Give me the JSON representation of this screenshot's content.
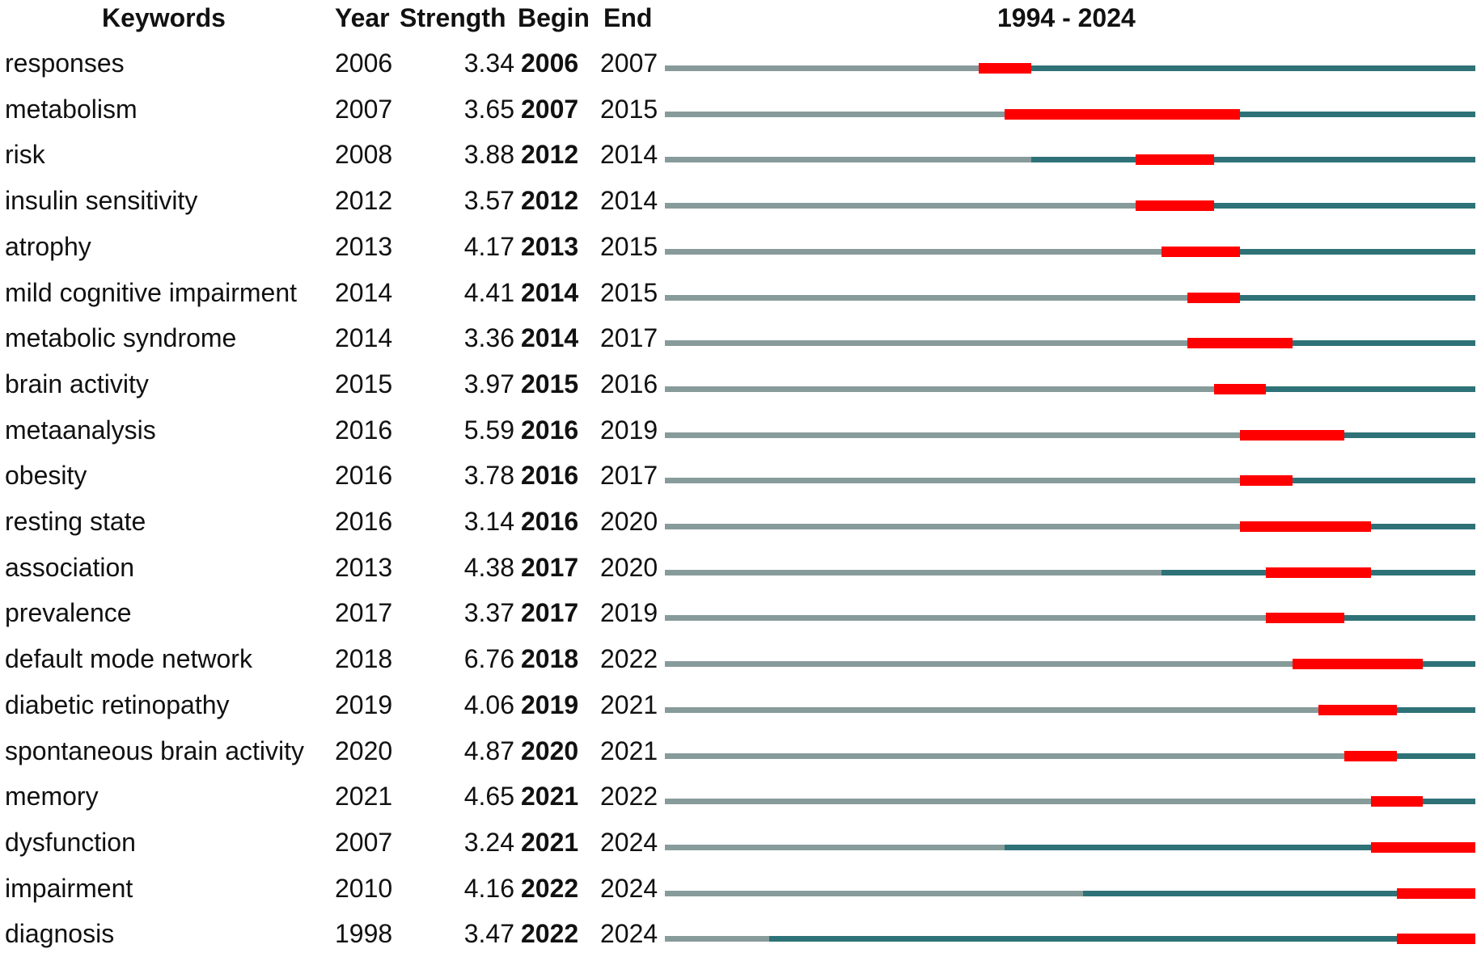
{
  "chart_data": {
    "type": "table",
    "period_label": "1994 - 2024",
    "period_start": 1994,
    "period_end": 2024,
    "colors": {
      "before_appearance": "#879b9a",
      "active": "#2e7277",
      "burst": "#ff0000"
    },
    "headers": {
      "keyword": "Keywords",
      "year": "Year",
      "strength": "Strength",
      "begin": "Begin",
      "end": "End"
    },
    "rows": [
      {
        "keyword": "responses",
        "year": "2006",
        "strength": "3.34",
        "begin": "2006",
        "end": "2007"
      },
      {
        "keyword": "metabolism",
        "year": "2007",
        "strength": "3.65",
        "begin": "2007",
        "end": "2015"
      },
      {
        "keyword": "risk",
        "year": "2008",
        "strength": "3.88",
        "begin": "2012",
        "end": "2014"
      },
      {
        "keyword": "insulin sensitivity",
        "year": "2012",
        "strength": "3.57",
        "begin": "2012",
        "end": "2014"
      },
      {
        "keyword": "atrophy",
        "year": "2013",
        "strength": "4.17",
        "begin": "2013",
        "end": "2015"
      },
      {
        "keyword": "mild cognitive impairment",
        "year": "2014",
        "strength": "4.41",
        "begin": "2014",
        "end": "2015"
      },
      {
        "keyword": "metabolic syndrome",
        "year": "2014",
        "strength": "3.36",
        "begin": "2014",
        "end": "2017"
      },
      {
        "keyword": "brain activity",
        "year": "2015",
        "strength": "3.97",
        "begin": "2015",
        "end": "2016"
      },
      {
        "keyword": "metaanalysis",
        "year": "2016",
        "strength": "5.59",
        "begin": "2016",
        "end": "2019"
      },
      {
        "keyword": "obesity",
        "year": "2016",
        "strength": "3.78",
        "begin": "2016",
        "end": "2017"
      },
      {
        "keyword": "resting state",
        "year": "2016",
        "strength": "3.14",
        "begin": "2016",
        "end": "2020"
      },
      {
        "keyword": "association",
        "year": "2013",
        "strength": "4.38",
        "begin": "2017",
        "end": "2020"
      },
      {
        "keyword": "prevalence",
        "year": "2017",
        "strength": "3.37",
        "begin": "2017",
        "end": "2019"
      },
      {
        "keyword": "default mode network",
        "year": "2018",
        "strength": "6.76",
        "begin": "2018",
        "end": "2022"
      },
      {
        "keyword": "diabetic retinopathy",
        "year": "2019",
        "strength": "4.06",
        "begin": "2019",
        "end": "2021"
      },
      {
        "keyword": "spontaneous brain activity",
        "year": "2020",
        "strength": "4.87",
        "begin": "2020",
        "end": "2021"
      },
      {
        "keyword": "memory",
        "year": "2021",
        "strength": "4.65",
        "begin": "2021",
        "end": "2022"
      },
      {
        "keyword": "dysfunction",
        "year": "2007",
        "strength": "3.24",
        "begin": "2021",
        "end": "2024"
      },
      {
        "keyword": "impairment",
        "year": "2010",
        "strength": "4.16",
        "begin": "2022",
        "end": "2024"
      },
      {
        "keyword": "diagnosis",
        "year": "1998",
        "strength": "3.47",
        "begin": "2022",
        "end": "2024"
      }
    ]
  }
}
